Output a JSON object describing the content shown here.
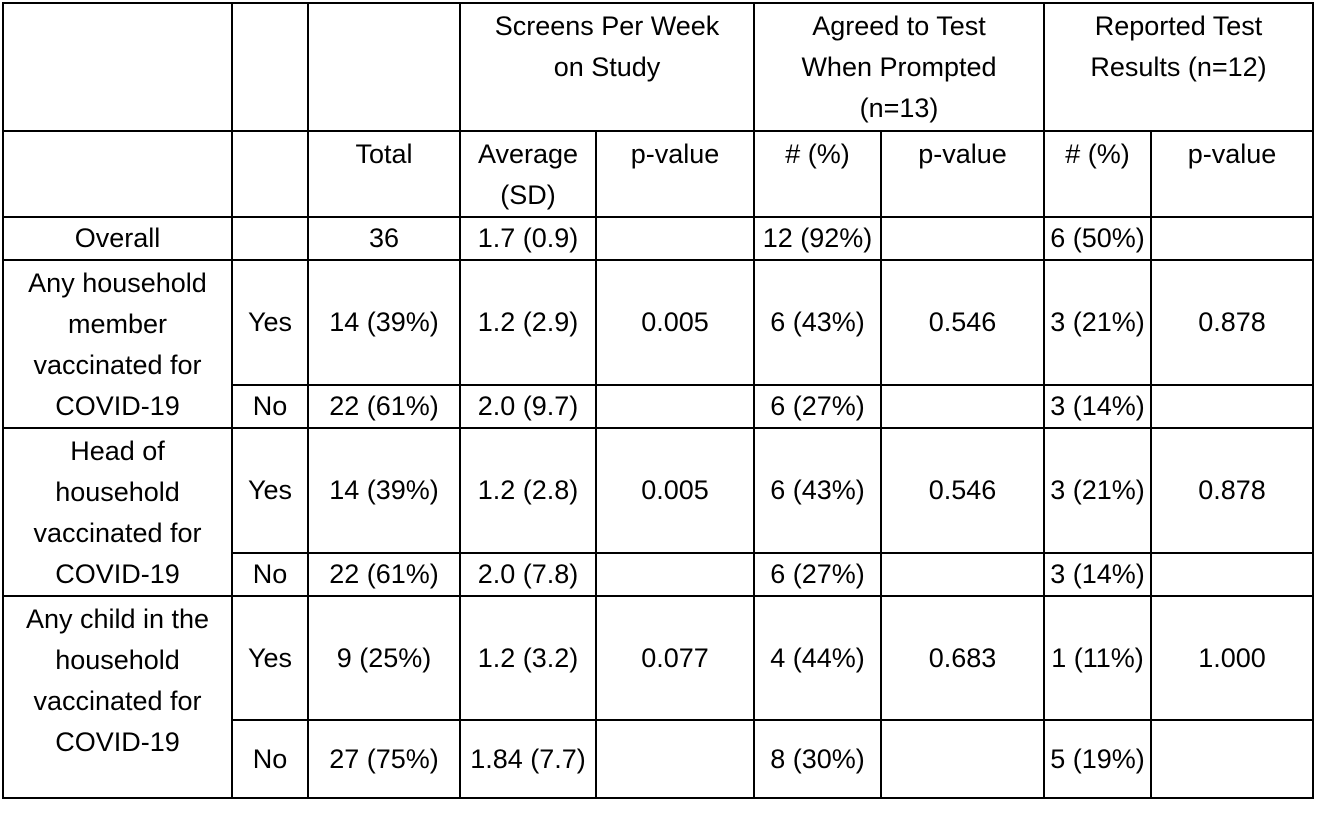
{
  "headers": {
    "group1": "Screens Per Week on Study",
    "group2": "Agreed to Test When Prompted (n=13)",
    "group3": "Reported Test Results (n=12)",
    "total": "Total",
    "average_sd": "Average (SD)",
    "p_value": "p-value",
    "count_pct": "# (%)"
  },
  "overall": {
    "label": "Overall",
    "total": "36",
    "avg": "1.7 (0.9)",
    "agreed": "12 (92%)",
    "reported": "6 (50%)"
  },
  "rows": [
    {
      "label": "Any household member vaccinated for COVID-19",
      "yes": {
        "label": "Yes",
        "total": "14 (39%)",
        "avg": "1.2 (2.9)",
        "p1": "0.005",
        "agreed": "6 (43%)",
        "p2": "0.546",
        "reported": "3 (21%)",
        "p3": "0.878"
      },
      "no": {
        "label": "No",
        "total": "22 (61%)",
        "avg": "2.0 (9.7)",
        "agreed": "6 (27%)",
        "reported": "3 (14%)"
      }
    },
    {
      "label": "Head of household vaccinated for COVID-19",
      "yes": {
        "label": "Yes",
        "total": "14 (39%)",
        "avg": "1.2 (2.8)",
        "p1": "0.005",
        "agreed": "6 (43%)",
        "p2": "0.546",
        "reported": "3 (21%)",
        "p3": "0.878"
      },
      "no": {
        "label": "No",
        "total": "22 (61%)",
        "avg": "2.0 (7.8)",
        "agreed": "6 (27%)",
        "reported": "3 (14%)"
      }
    },
    {
      "label": "Any child in the household vaccinated for COVID-19",
      "yes": {
        "label": "Yes",
        "total": "9 (25%)",
        "avg": "1.2 (3.2)",
        "p1": "0.077",
        "agreed": "4 (44%)",
        "p2": "0.683",
        "reported": "1 (11%)",
        "p3": "1.000"
      },
      "no": {
        "label": "No",
        "total": "27 (75%)",
        "avg": "1.84 (7.7)",
        "agreed": "8 (30%)",
        "reported": "5 (19%)"
      }
    }
  ]
}
